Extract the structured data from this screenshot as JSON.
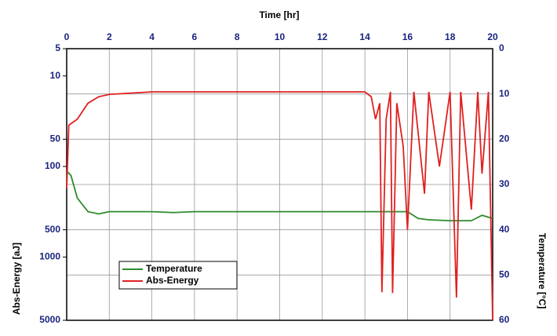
{
  "chart_data": {
    "type": "line",
    "xlabel": "Time [hr]",
    "ylabel": "Abs-Energy [aJ]",
    "y2label": "Temperature [°C]",
    "xlim": [
      0,
      20
    ],
    "xticks": [
      0,
      2,
      4,
      6,
      8,
      10,
      12,
      14,
      16,
      18,
      20
    ],
    "ylim": [
      5,
      5000
    ],
    "yticks": [
      5,
      10,
      50,
      100,
      500,
      1000,
      5000
    ],
    "ylog": true,
    "yinverted": true,
    "y2lim": [
      0,
      60
    ],
    "y2ticks": [
      0,
      10,
      20,
      30,
      40,
      50,
      60
    ],
    "y2inverted": true,
    "xaxis_position": "top",
    "grid": true,
    "legend": "bottom-left",
    "series": [
      {
        "name": "Temperature",
        "color": "#2e8b2e",
        "axis": "y2",
        "x": [
          0,
          0.2,
          0.5,
          1,
          1.5,
          2,
          3,
          4,
          5,
          6,
          7,
          8,
          9,
          10,
          11,
          12,
          13,
          14,
          15,
          16,
          16.5,
          17,
          18,
          19,
          19.5,
          20
        ],
        "values": [
          27,
          28,
          33,
          36,
          36.5,
          36,
          36,
          36,
          36.2,
          36,
          36,
          36,
          36,
          36,
          36,
          36,
          36,
          36,
          36,
          36,
          37.5,
          37.8,
          38,
          38,
          36.8,
          37.5
        ]
      },
      {
        "name": "Abs-Energy",
        "color": "#e02020",
        "axis": "y",
        "x": [
          0,
          0.1,
          0.5,
          1,
          1.5,
          2,
          4,
          6,
          8,
          10,
          12,
          13,
          14,
          14.3,
          14.5,
          14.7,
          14.8,
          15,
          15.2,
          15.3,
          15.5,
          15.8,
          16,
          16.3,
          16.8,
          17,
          17.5,
          18,
          18.3,
          18.5,
          19,
          19.3,
          19.5,
          19.8,
          20
        ],
        "values": [
          175,
          35,
          30,
          20,
          17,
          16,
          15,
          15,
          15,
          15,
          15,
          15,
          15,
          17,
          30,
          20,
          2450,
          30,
          15,
          2500,
          20,
          60,
          500,
          15,
          200,
          15,
          100,
          15,
          2800,
          15,
          300,
          15,
          120,
          15,
          5000
        ]
      }
    ]
  }
}
